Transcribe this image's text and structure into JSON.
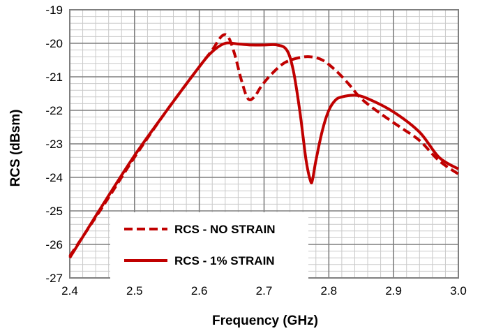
{
  "chart_data": {
    "type": "line",
    "title": "",
    "xlabel": "Frequency (GHz)",
    "ylabel": "RCS (dBsm)",
    "xlim": [
      2.4,
      3.0
    ],
    "ylim": [
      -27,
      -19
    ],
    "x_ticks": [
      "2.4",
      "2.5",
      "2.6",
      "2.7",
      "2.8",
      "2.9",
      "3.0"
    ],
    "y_ticks": [
      "-19",
      "-20",
      "-21",
      "-22",
      "-23",
      "-24",
      "-25",
      "-26",
      "-27"
    ],
    "grid": true,
    "legend_position": "bottom-left",
    "series": [
      {
        "name": "RCS - NO STRAIN",
        "style": "dashed",
        "color": "#c00000",
        "x": [
          2.4,
          2.45,
          2.5,
          2.55,
          2.6,
          2.62,
          2.635,
          2.645,
          2.655,
          2.665,
          2.675,
          2.685,
          2.695,
          2.71,
          2.73,
          2.75,
          2.77,
          2.79,
          2.81,
          2.83,
          2.85,
          2.88,
          2.91,
          2.94,
          2.97,
          3.0
        ],
        "y": [
          -26.35,
          -24.9,
          -23.4,
          -22.0,
          -20.7,
          -20.2,
          -19.78,
          -19.82,
          -20.35,
          -21.1,
          -21.65,
          -21.6,
          -21.3,
          -20.95,
          -20.6,
          -20.45,
          -20.4,
          -20.5,
          -20.8,
          -21.2,
          -21.65,
          -22.1,
          -22.5,
          -22.9,
          -23.5,
          -23.9
        ]
      },
      {
        "name": "RCS - 1% STRAIN",
        "style": "solid",
        "color": "#c00000",
        "x": [
          2.4,
          2.45,
          2.5,
          2.55,
          2.6,
          2.62,
          2.64,
          2.66,
          2.68,
          2.7,
          2.72,
          2.735,
          2.745,
          2.755,
          2.765,
          2.772,
          2.775,
          2.78,
          2.79,
          2.8,
          2.81,
          2.82,
          2.84,
          2.86,
          2.9,
          2.94,
          2.97,
          3.0
        ],
        "y": [
          -26.4,
          -24.85,
          -23.35,
          -22.0,
          -20.7,
          -20.25,
          -20.0,
          -20.02,
          -20.05,
          -20.05,
          -20.05,
          -20.2,
          -20.8,
          -22.0,
          -23.5,
          -24.12,
          -24.05,
          -23.5,
          -22.6,
          -22.0,
          -21.7,
          -21.6,
          -21.55,
          -21.65,
          -22.05,
          -22.65,
          -23.4,
          -23.75
        ]
      }
    ]
  }
}
